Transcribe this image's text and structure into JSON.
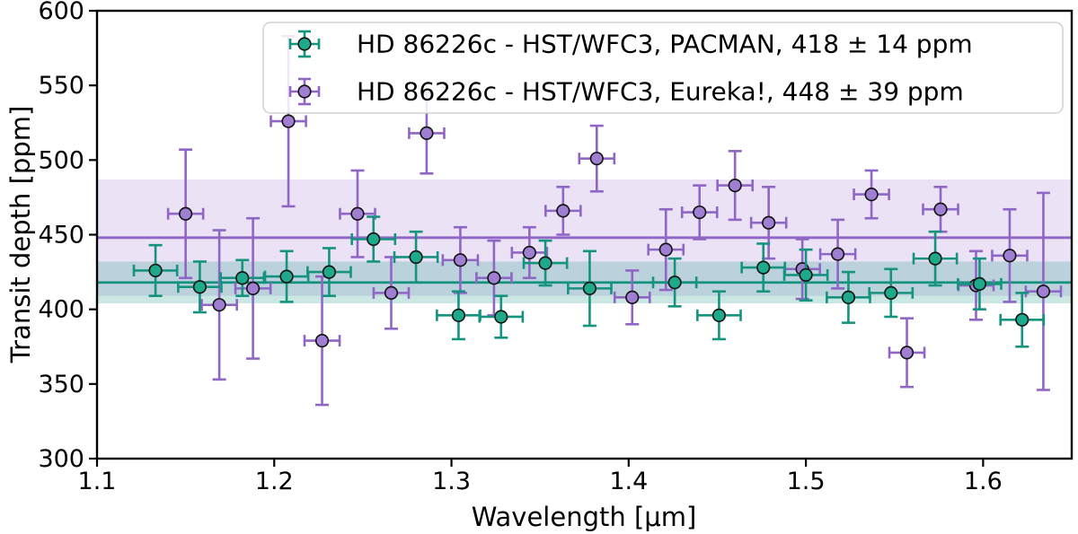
{
  "figure": {
    "background": "#ffffff"
  },
  "chart_data": {
    "type": "scatter",
    "title": "",
    "xlabel": "Wavelength [μm]",
    "ylabel": "Transit depth [ppm]",
    "xlim": [
      1.1,
      1.65
    ],
    "ylim": [
      300,
      600
    ],
    "xticks": [
      1.1,
      1.2,
      1.3,
      1.4,
      1.5,
      1.6
    ],
    "yticks": [
      300,
      350,
      400,
      450,
      500,
      550,
      600
    ],
    "grid": false,
    "legend_position": "upper right",
    "series": [
      {
        "name": "HD 86226c - HST/WFC3, PACMAN, 418 ± 14 ppm",
        "color": "#14937f",
        "marker_fill": "#1fa98c",
        "band_opacity": 0.22,
        "mean_ppm": 418,
        "mean_err_ppm": 14,
        "x_half_width_um": 0.0122,
        "points": [
          {
            "x": 1.133,
            "y": 426,
            "yerr": 17
          },
          {
            "x": 1.158,
            "y": 415,
            "yerr": 17
          },
          {
            "x": 1.182,
            "y": 421,
            "yerr": 12
          },
          {
            "x": 1.207,
            "y": 422,
            "yerr": 17
          },
          {
            "x": 1.231,
            "y": 425,
            "yerr": 16
          },
          {
            "x": 1.256,
            "y": 447,
            "yerr": 15
          },
          {
            "x": 1.28,
            "y": 435,
            "yerr": 17
          },
          {
            "x": 1.304,
            "y": 396,
            "yerr": 16
          },
          {
            "x": 1.328,
            "y": 395,
            "yerr": 14
          },
          {
            "x": 1.353,
            "y": 431,
            "yerr": 15
          },
          {
            "x": 1.378,
            "y": 414,
            "yerr": 25
          },
          {
            "x": 1.426,
            "y": 418,
            "yerr": 16
          },
          {
            "x": 1.451,
            "y": 396,
            "yerr": 16
          },
          {
            "x": 1.476,
            "y": 428,
            "yerr": 16
          },
          {
            "x": 1.5,
            "y": 423,
            "yerr": 17
          },
          {
            "x": 1.524,
            "y": 408,
            "yerr": 17
          },
          {
            "x": 1.548,
            "y": 411,
            "yerr": 16
          },
          {
            "x": 1.573,
            "y": 434,
            "yerr": 18
          },
          {
            "x": 1.598,
            "y": 417,
            "yerr": 17
          },
          {
            "x": 1.622,
            "y": 393,
            "yerr": 18
          }
        ]
      },
      {
        "name": "HD 86226c - HST/WFC3, Eureka!, 448 ± 39 ppm",
        "color": "#8f66c5",
        "marker_fill": "#a07fd2",
        "band_opacity": 0.18,
        "mean_ppm": 448,
        "mean_err_ppm": 39,
        "x_half_width_um": 0.0099,
        "points": [
          {
            "x": 1.15,
            "y": 464,
            "yerr": 43
          },
          {
            "x": 1.169,
            "y": 403,
            "yerr": 50
          },
          {
            "x": 1.188,
            "y": 414,
            "yerr": 47
          },
          {
            "x": 1.208,
            "y": 526,
            "yerr": 57
          },
          {
            "x": 1.227,
            "y": 379,
            "yerr": 43
          },
          {
            "x": 1.247,
            "y": 464,
            "yerr": 29
          },
          {
            "x": 1.266,
            "y": 411,
            "yerr": 24
          },
          {
            "x": 1.286,
            "y": 518,
            "yerr": 27
          },
          {
            "x": 1.305,
            "y": 433,
            "yerr": 22
          },
          {
            "x": 1.324,
            "y": 421,
            "yerr": 25
          },
          {
            "x": 1.344,
            "y": 438,
            "yerr": 17
          },
          {
            "x": 1.363,
            "y": 466,
            "yerr": 16
          },
          {
            "x": 1.382,
            "y": 501,
            "yerr": 22
          },
          {
            "x": 1.402,
            "y": 408,
            "yerr": 18
          },
          {
            "x": 1.421,
            "y": 440,
            "yerr": 27
          },
          {
            "x": 1.44,
            "y": 465,
            "yerr": 18
          },
          {
            "x": 1.46,
            "y": 483,
            "yerr": 23
          },
          {
            "x": 1.479,
            "y": 458,
            "yerr": 24
          },
          {
            "x": 1.498,
            "y": 427,
            "yerr": 20
          },
          {
            "x": 1.518,
            "y": 437,
            "yerr": 23
          },
          {
            "x": 1.537,
            "y": 477,
            "yerr": 16
          },
          {
            "x": 1.557,
            "y": 371,
            "yerr": 23
          },
          {
            "x": 1.576,
            "y": 467,
            "yerr": 15
          },
          {
            "x": 1.596,
            "y": 416,
            "yerr": 23
          },
          {
            "x": 1.615,
            "y": 436,
            "yerr": 31
          },
          {
            "x": 1.634,
            "y": 412,
            "yerr": 66
          }
        ]
      }
    ]
  }
}
